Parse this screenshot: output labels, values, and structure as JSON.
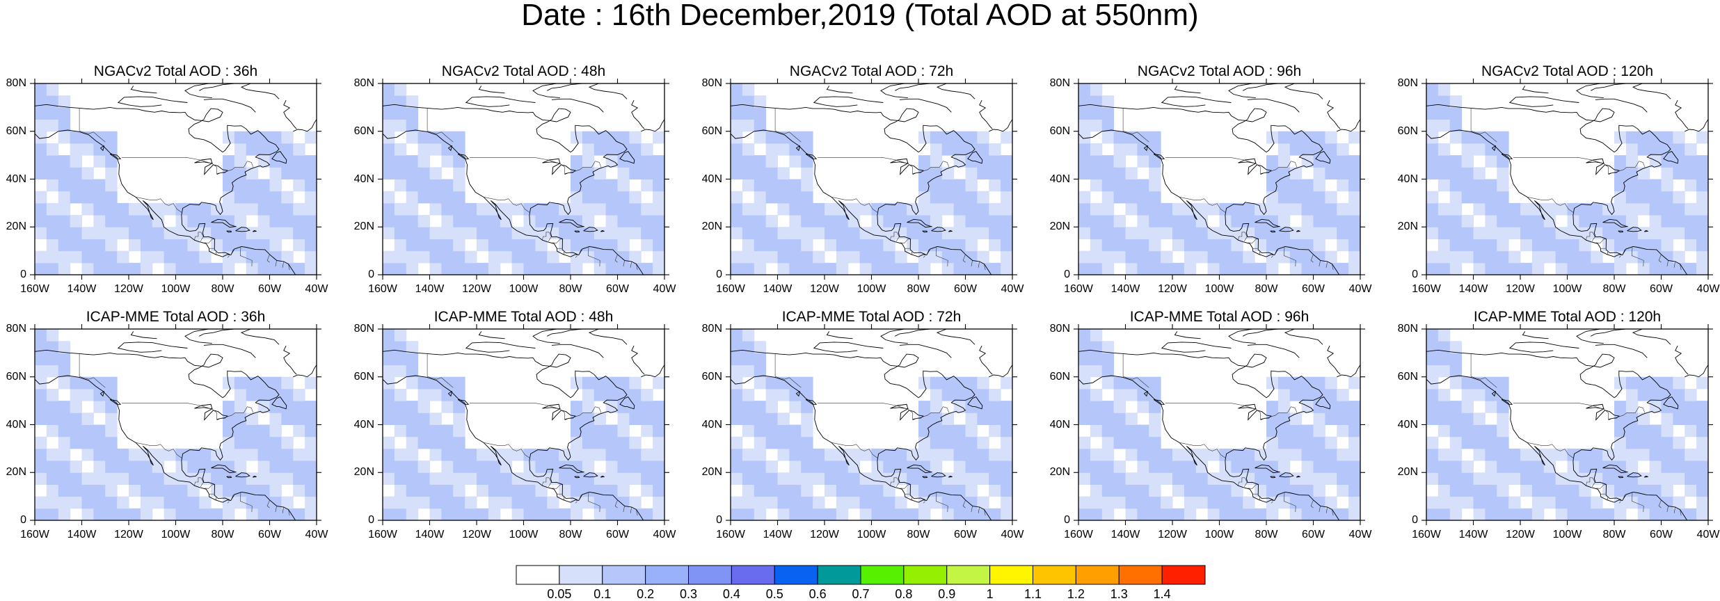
{
  "title": "Date : 16th December,2019 (Total AOD at 550nm)",
  "rows": [
    {
      "model": "NGACv2",
      "panels": [
        {
          "title": "NGACv2 Total AOD : 36h",
          "lead_hours": 36
        },
        {
          "title": "NGACv2 Total AOD : 48h",
          "lead_hours": 48
        },
        {
          "title": "NGACv2 Total AOD : 72h",
          "lead_hours": 72
        },
        {
          "title": "NGACv2 Total AOD : 96h",
          "lead_hours": 96
        },
        {
          "title": "NGACv2 Total AOD : 120h",
          "lead_hours": 120
        }
      ]
    },
    {
      "model": "ICAP-MME",
      "panels": [
        {
          "title": "ICAP-MME Total AOD : 36h",
          "lead_hours": 36
        },
        {
          "title": "ICAP-MME Total AOD : 48h",
          "lead_hours": 48
        },
        {
          "title": "ICAP-MME Total AOD : 72h",
          "lead_hours": 72
        },
        {
          "title": "ICAP-MME Total AOD : 96h",
          "lead_hours": 96
        },
        {
          "title": "ICAP-MME Total AOD : 120h",
          "lead_hours": 120
        }
      ]
    }
  ],
  "map_extent": {
    "lon_min": -160,
    "lon_max": -40,
    "lat_min": 0,
    "lat_max": 80
  },
  "lat_ticks": [
    {
      "value": 0,
      "label": "0"
    },
    {
      "value": 20,
      "label": "20N"
    },
    {
      "value": 40,
      "label": "40N"
    },
    {
      "value": 60,
      "label": "60N"
    },
    {
      "value": 80,
      "label": "80N"
    }
  ],
  "lon_ticks": [
    {
      "value": -160,
      "label": "160W"
    },
    {
      "value": -140,
      "label": "140W"
    },
    {
      "value": -120,
      "label": "120W"
    },
    {
      "value": -100,
      "label": "100W"
    },
    {
      "value": -80,
      "label": "80W"
    },
    {
      "value": -60,
      "label": "60W"
    },
    {
      "value": -40,
      "label": "40W"
    }
  ],
  "colorbar": {
    "labels": [
      "0.05",
      "0.1",
      "0.2",
      "0.3",
      "0.4",
      "0.5",
      "0.6",
      "0.7",
      "0.8",
      "0.9",
      "1",
      "1.1",
      "1.2",
      "1.3",
      "1.4"
    ],
    "colors": [
      "#ffffff",
      "#d6e0fb",
      "#b4c6fa",
      "#99b1f9",
      "#8094f5",
      "#6a6cf0",
      "#0a62f0",
      "#009a9a",
      "#56f000",
      "#94f000",
      "#c2f544",
      "#fff500",
      "#ffc400",
      "#ff9f00",
      "#ff7000",
      "#ff2000"
    ]
  }
}
